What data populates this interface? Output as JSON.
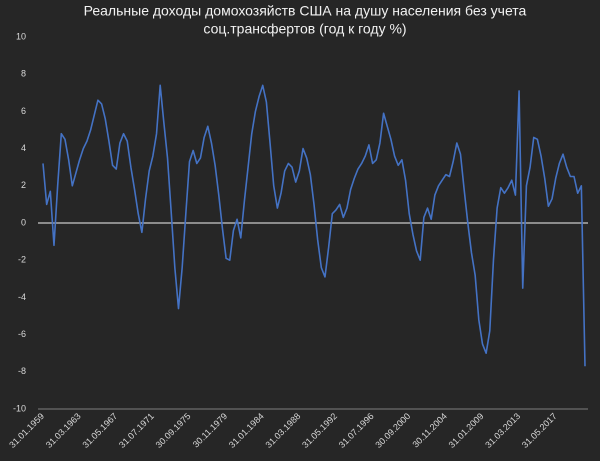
{
  "chart_data": {
    "type": "line",
    "title": [
      "Реальные доходы домохозяйств США на душу населения без учета",
      "соц.трансфертов (год к году %)"
    ],
    "categories": [
      "31.01.1959",
      null,
      null,
      null,
      null,
      null,
      null,
      null,
      null,
      null,
      "31.03.1963",
      null,
      null,
      null,
      null,
      null,
      null,
      null,
      null,
      null,
      "31.05.1967",
      null,
      null,
      null,
      null,
      null,
      null,
      null,
      null,
      null,
      "31.07.1971",
      null,
      null,
      null,
      null,
      null,
      null,
      null,
      null,
      null,
      "30.09.1975",
      null,
      null,
      null,
      null,
      null,
      null,
      null,
      null,
      null,
      "30.11.1979",
      null,
      null,
      null,
      null,
      null,
      null,
      null,
      null,
      null,
      "31.01.1984",
      null,
      null,
      null,
      null,
      null,
      null,
      null,
      null,
      null,
      "31.03.1988",
      null,
      null,
      null,
      null,
      null,
      null,
      null,
      null,
      null,
      "31.05.1992",
      null,
      null,
      null,
      null,
      null,
      null,
      null,
      null,
      null,
      "31.07.1996",
      null,
      null,
      null,
      null,
      null,
      null,
      null,
      null,
      null,
      "30.09.2000",
      null,
      null,
      null,
      null,
      null,
      null,
      null,
      null,
      null,
      "30.11.2004",
      null,
      null,
      null,
      null,
      null,
      null,
      null,
      null,
      null,
      "31.01.2009",
      null,
      null,
      null,
      null,
      null,
      null,
      null,
      null,
      null,
      "31.03.2013",
      null,
      null,
      null,
      null,
      null,
      null,
      null,
      null,
      null,
      "31.05.2017",
      null,
      null,
      null,
      null,
      null,
      null,
      null,
      null
    ],
    "values": [
      3.2,
      1.0,
      1.7,
      -1.2,
      2.0,
      4.8,
      4.5,
      3.4,
      2.0,
      2.7,
      3.4,
      4.0,
      4.4,
      5.0,
      5.8,
      6.6,
      6.4,
      5.6,
      4.4,
      3.1,
      2.9,
      4.3,
      4.8,
      4.4,
      3.0,
      1.8,
      0.5,
      -0.5,
      1.3,
      2.8,
      3.6,
      4.8,
      7.4,
      5.4,
      3.5,
      0.6,
      -2.4,
      -4.6,
      -2.4,
      0.5,
      3.3,
      3.9,
      3.2,
      3.5,
      4.6,
      5.2,
      4.3,
      3.1,
      1.5,
      -0.3,
      -1.9,
      -2.0,
      -0.4,
      0.2,
      -0.8,
      1.2,
      3.0,
      4.8,
      6.0,
      6.8,
      7.4,
      6.5,
      4.3,
      2.0,
      0.8,
      1.6,
      2.8,
      3.2,
      3.0,
      2.2,
      2.8,
      4.0,
      3.5,
      2.6,
      1.0,
      -0.9,
      -2.4,
      -2.9,
      -1.3,
      0.5,
      0.7,
      1.0,
      0.3,
      0.8,
      1.8,
      2.4,
      2.9,
      3.2,
      3.6,
      4.2,
      3.2,
      3.4,
      4.3,
      5.9,
      5.2,
      4.5,
      3.6,
      3.1,
      3.4,
      2.3,
      0.5,
      -0.6,
      -1.5,
      -2.0,
      0.3,
      0.8,
      0.2,
      1.5,
      2.0,
      2.3,
      2.6,
      2.5,
      3.3,
      4.3,
      3.7,
      1.8,
      0.0,
      -1.6,
      -2.8,
      -5.2,
      -6.5,
      -7.0,
      -5.8,
      -2.0,
      0.8,
      1.9,
      1.6,
      1.9,
      2.3,
      1.5,
      7.1,
      -3.5,
      2.0,
      3.0,
      4.6,
      4.5,
      3.6,
      2.4,
      0.9,
      1.3,
      2.4,
      3.2,
      3.7,
      3.0,
      2.5,
      2.5,
      1.6,
      2.0,
      -7.7
    ],
    "color": "#4472c4",
    "ylim": [
      -10,
      10
    ],
    "yticks": [
      -10,
      -8,
      -6,
      -4,
      -2,
      0,
      2,
      4,
      6,
      8,
      10
    ],
    "grid": false
  }
}
